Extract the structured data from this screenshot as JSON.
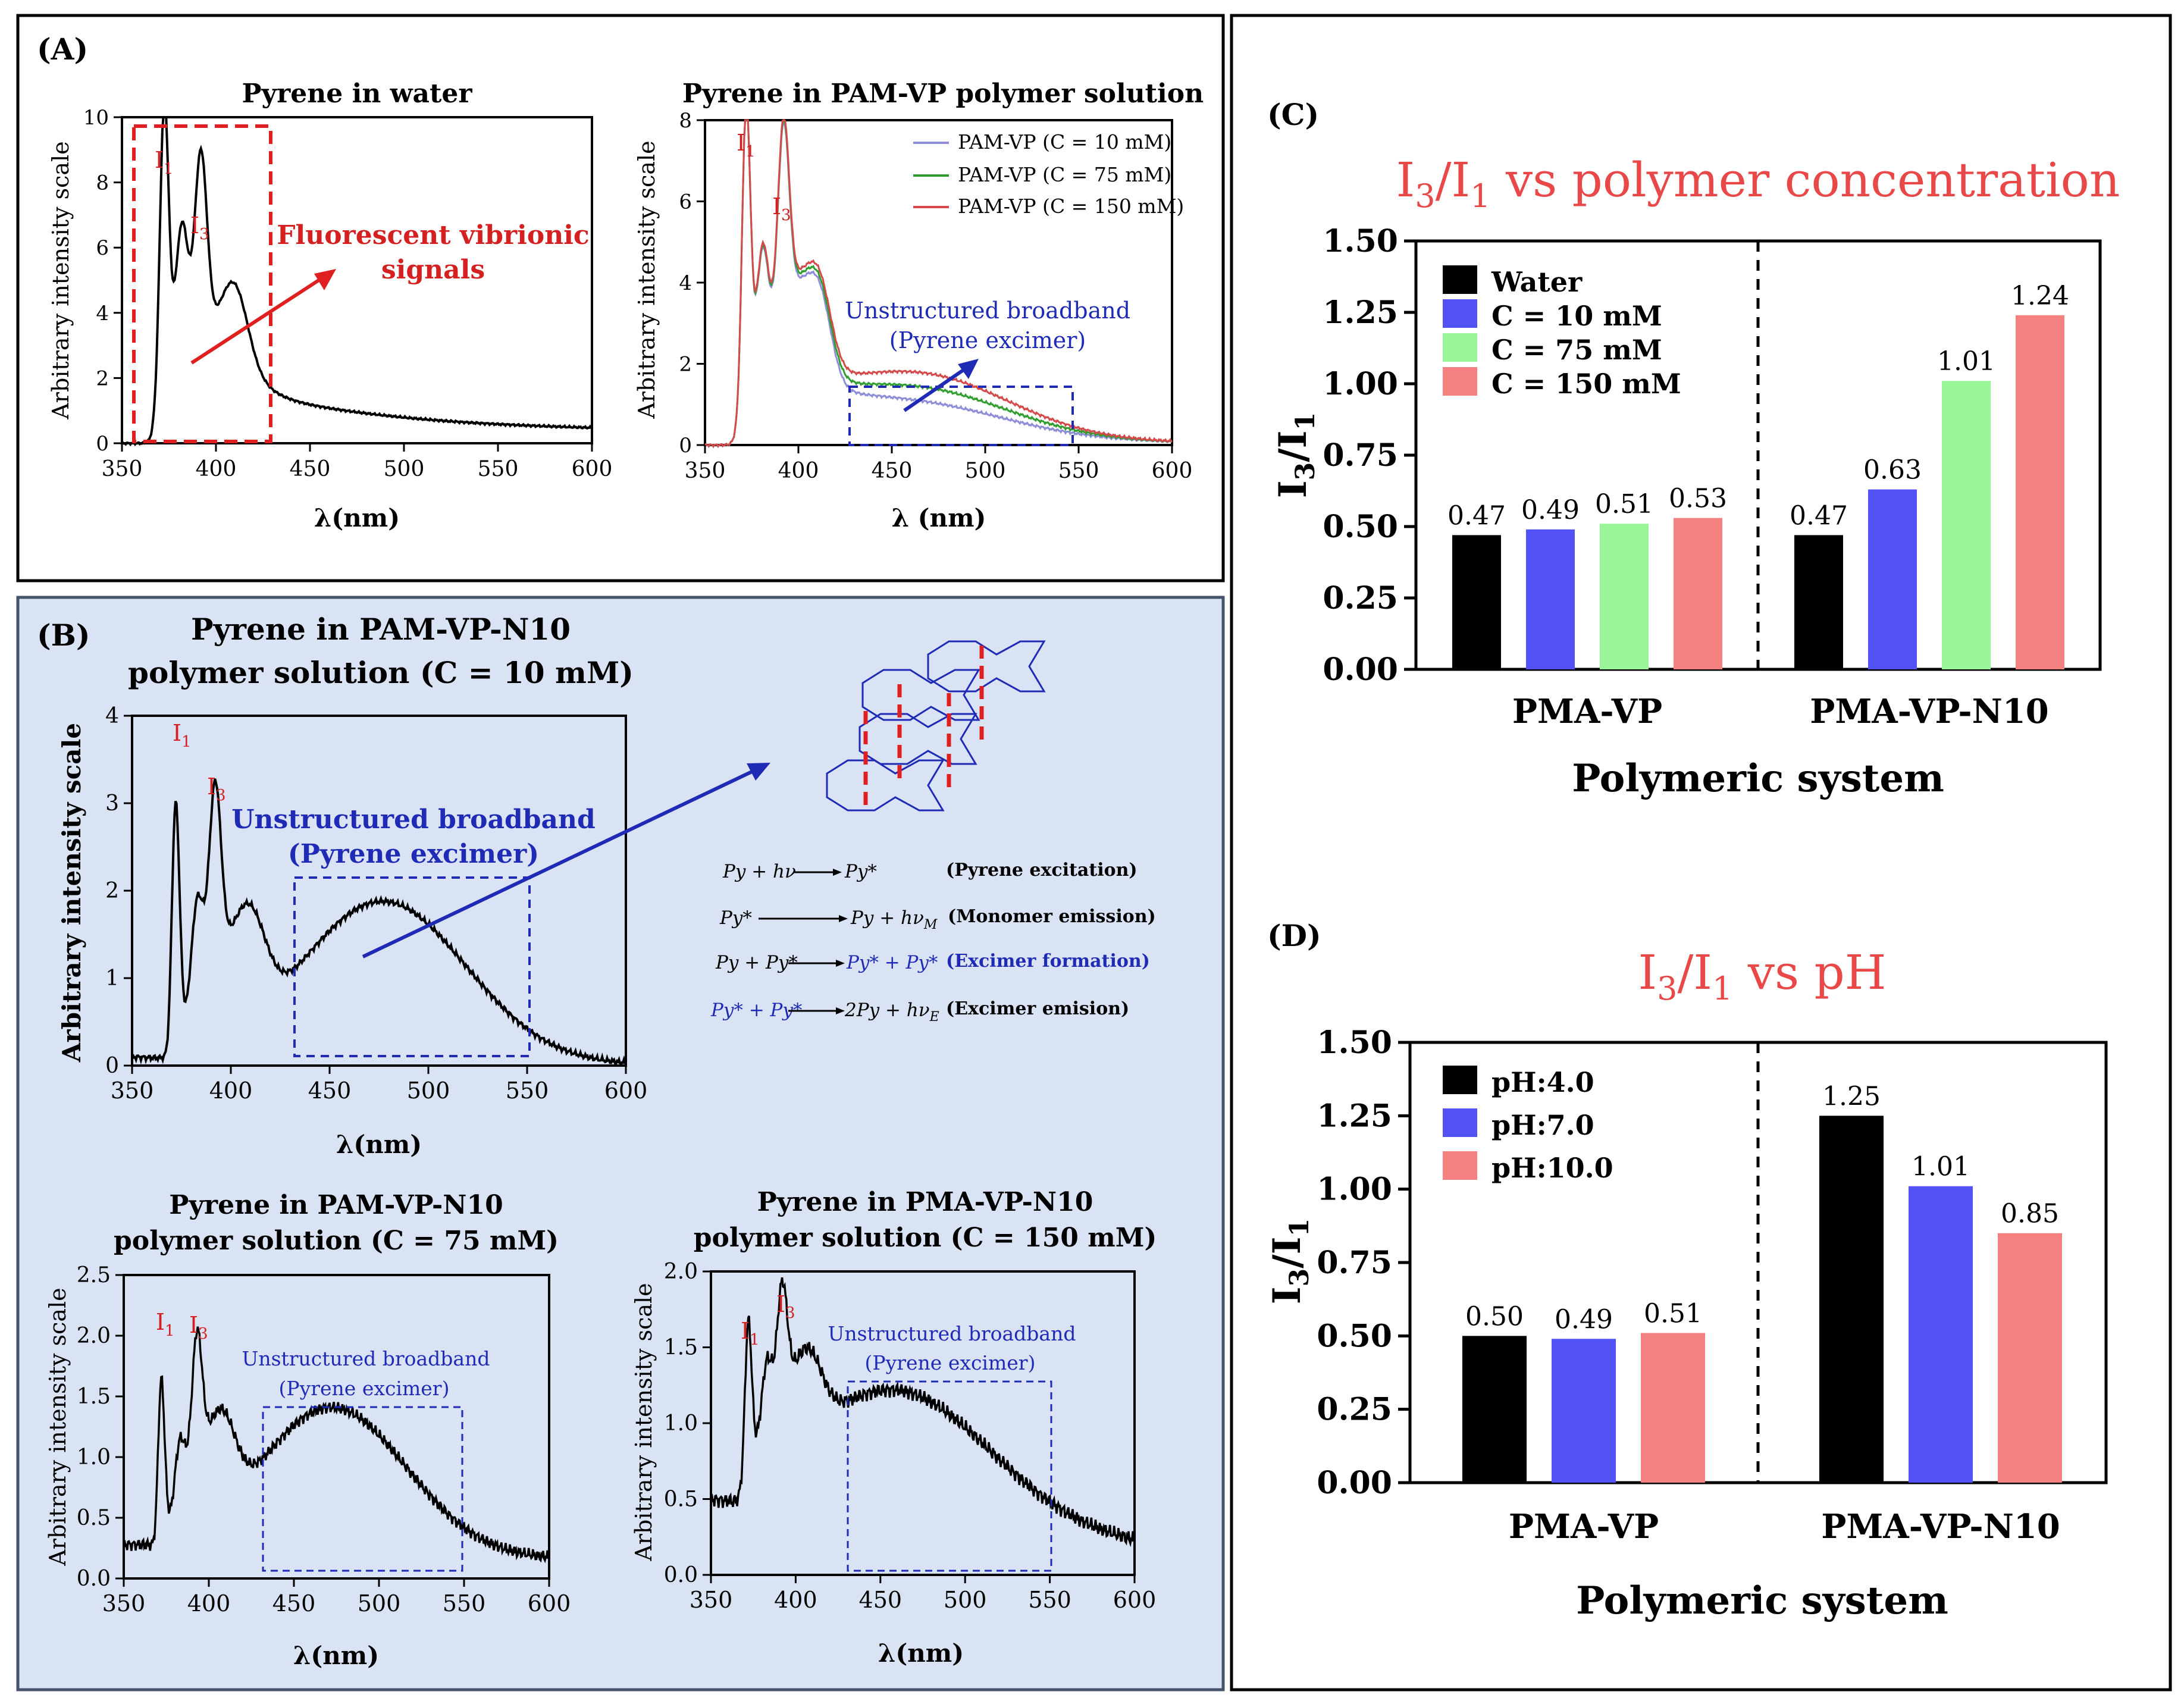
{
  "panels": {
    "A": "(A)",
    "B": "(B)",
    "C": "(C)",
    "D": "(D)"
  },
  "spectra": {
    "a1": {
      "title": "Pyrene in water",
      "xlabel": "λ(nm)",
      "ylabel": "Arbitrary intensity scale",
      "xticks": [
        "350",
        "400",
        "450",
        "500",
        "550",
        "600"
      ],
      "yticks": [
        "0",
        "2",
        "4",
        "6",
        "8",
        "10"
      ],
      "peak1": "I",
      "peak1_sub": "1",
      "peak3": "I",
      "peak3_sub": "3",
      "annotation_l1": "Fluorescent vibrionic",
      "annotation_l2": "signals"
    },
    "a2": {
      "title": "Pyrene in PAM-VP polymer solution",
      "xlabel": "λ (nm)",
      "ylabel": "Arbitrary intensity scale",
      "xticks": [
        "350",
        "400",
        "450",
        "500",
        "550",
        "600"
      ],
      "yticks": [
        "0",
        "2",
        "4",
        "6",
        "8"
      ],
      "peak1": "I",
      "peak1_sub": "1",
      "peak3": "I",
      "peak3_sub": "3",
      "legend": [
        "PAM-VP (C = 10 mM)",
        "PAM-VP (C = 75 mM)",
        "PAM-VP (C = 150 mM)"
      ],
      "legend_colors": [
        "#8e8ed8",
        "#2f9e2f",
        "#d44a4a"
      ],
      "annotation_l1": "Unstructured  broadband",
      "annotation_l2": "(Pyrene excimer)"
    },
    "b1": {
      "title_l1": "Pyrene in PAM-VP-N10",
      "title_l2": "polymer solution (C = 10 mM)",
      "xlabel": "λ(nm)",
      "ylabel": "Arbitrary intensity scale",
      "xticks": [
        "350",
        "400",
        "450",
        "500",
        "550",
        "600"
      ],
      "yticks": [
        "0",
        "1",
        "2",
        "3",
        "4"
      ],
      "peak1": "I",
      "peak1_sub": "1",
      "peak3": "I",
      "peak3_sub": "3",
      "annotation_l1": "Unstructured  broadband",
      "annotation_l2": "(Pyrene excimer)"
    },
    "b2": {
      "title_l1": "Pyrene in PAM-VP-N10",
      "title_l2": "polymer solution (C = 75 mM)",
      "xlabel": "λ(nm)",
      "ylabel": "Arbitrary intensity scale",
      "xticks": [
        "350",
        "400",
        "450",
        "500",
        "550",
        "600"
      ],
      "yticks": [
        "0.0",
        "0.5",
        "1.0",
        "1.5",
        "2.0",
        "2.5"
      ],
      "peak1": "I",
      "peak1_sub": "1",
      "peak3": "I",
      "peak3_sub": "3",
      "annotation_l1": "Unstructured  broadband",
      "annotation_l2": "(Pyrene excimer)"
    },
    "b3": {
      "title_l1": "Pyrene in PMA-VP-N10",
      "title_l2": "polymer solution (C = 150 mM)",
      "xlabel": "λ(nm)",
      "ylabel": "Arbitrary intensity scale",
      "xticks": [
        "350",
        "400",
        "450",
        "500",
        "550",
        "600"
      ],
      "yticks": [
        "0.0",
        "0.5",
        "1.0",
        "1.5",
        "2.0"
      ],
      "peak1": "I",
      "peak1_sub": "1",
      "peak3": "I",
      "peak3_sub": "3",
      "annotation_l1": "Unstructured  broadband",
      "annotation_l2": "(Pyrene excimer)"
    }
  },
  "equations": {
    "e1_lhs": "Py + hν",
    "e1_rhs": "Py*",
    "e1_label": "(Pyrene excitation)",
    "e2_lhs": "Py*",
    "e2_rhs": "Py + hν",
    "e2_rhs_sub": "M",
    "e2_label": "(Monomer emission)",
    "e3_lhs": "Py + Py*",
    "e3_rhs": "Py* + Py*",
    "e3_label": "(Excimer formation)",
    "e4_lhs": "Py* + Py*",
    "e4_rhs": "2Py + hν",
    "e4_rhs_sub": "E",
    "e4_label": "(Excimer emision)"
  },
  "chart_data": [
    {
      "type": "bar",
      "title": "I3/I1 vs polymer concentration",
      "title_parts": [
        "I",
        "3",
        "/I",
        "1",
        " vs polymer concentration"
      ],
      "xlabel": "Polymeric system",
      "ylabel_parts": [
        "I",
        "3",
        "/I",
        "1"
      ],
      "ylim": [
        0,
        1.5
      ],
      "yticks": [
        "0.00",
        "0.25",
        "0.50",
        "0.75",
        "1.00",
        "1.25",
        "1.50"
      ],
      "categories": [
        "PMA-VP",
        "PMA-VP-N10"
      ],
      "series": [
        {
          "name": "Water",
          "color": "#000000",
          "values": [
            0.47,
            0.47
          ],
          "labels": [
            "0.47",
            "0.47"
          ]
        },
        {
          "name": "C = 10 mM",
          "color": "#5252f5",
          "values": [
            0.49,
            0.63
          ],
          "labels": [
            "0.49",
            "0.63"
          ]
        },
        {
          "name": "C = 75 mM",
          "color": "#98f598",
          "values": [
            0.51,
            1.01
          ],
          "labels": [
            "0.51",
            "1.01"
          ]
        },
        {
          "name": "C = 150 mM",
          "color": "#f58080",
          "values": [
            0.53,
            1.24
          ],
          "labels": [
            "0.53",
            "1.24"
          ]
        }
      ]
    },
    {
      "type": "bar",
      "title": "I3/I1 vs pH",
      "title_parts": [
        "I",
        "3",
        "/I",
        "1",
        " vs pH"
      ],
      "xlabel": "Polymeric system",
      "ylabel_parts": [
        "I",
        "3",
        "/I",
        "1"
      ],
      "ylim": [
        0,
        1.5
      ],
      "yticks": [
        "0.00",
        "0.25",
        "0.50",
        "0.75",
        "1.00",
        "1.25",
        "1.50"
      ],
      "categories": [
        "PMA-VP",
        "PMA-VP-N10"
      ],
      "series": [
        {
          "name": "pH:4.0",
          "color": "#000000",
          "values": [
            0.5,
            1.25
          ],
          "labels": [
            "0.50",
            "1.25"
          ]
        },
        {
          "name": "pH:7.0",
          "color": "#5252f5",
          "values": [
            0.49,
            1.01
          ],
          "labels": [
            "0.49",
            "1.01"
          ]
        },
        {
          "name": "pH:10.0",
          "color": "#f58080",
          "values": [
            0.51,
            0.85
          ],
          "labels": [
            "0.51",
            "0.85"
          ]
        }
      ]
    }
  ]
}
